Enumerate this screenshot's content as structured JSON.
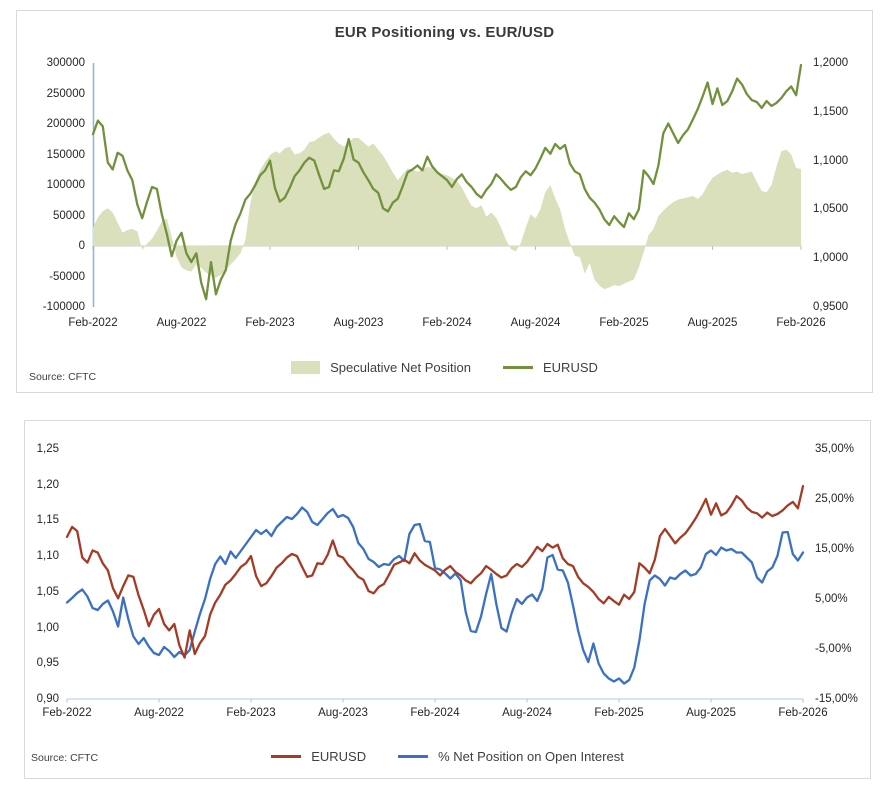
{
  "chart_data": [
    {
      "type": "combo",
      "title": "EUR Positioning vs. EUR/USD",
      "source": "Source: CFTC",
      "x_ticks": [
        "Feb-2022",
        "Aug-2022",
        "Feb-2023",
        "Aug-2023",
        "Feb-2024",
        "Aug-2024",
        "Feb-2025",
        "Aug-2025",
        "Feb-2026"
      ],
      "left_axis": {
        "min": -100000,
        "max": 300000,
        "zero_line": true,
        "axis_line_color": "#8eb4e3",
        "ticks": [
          "300000",
          "250000",
          "200000",
          "150000",
          "100000",
          "50000",
          "0",
          "-50000",
          "-100000"
        ]
      },
      "right_axis": {
        "min": 0.95,
        "max": 1.2,
        "ticks": [
          "1,2000",
          "1,1500",
          "1,1000",
          "1,0500",
          "1,0000",
          "0,9500"
        ]
      },
      "legend": [
        {
          "label": "Speculative Net Position",
          "swatch": "area",
          "color": "#d9e0bb"
        },
        {
          "label": "EURUSD",
          "swatch": "line",
          "color": "#72913c"
        }
      ],
      "series": [
        {
          "name": "Speculative Net Position",
          "type": "area",
          "axis": "left",
          "color": "#d9e0bb",
          "values": [
            30000,
            47000,
            57000,
            62000,
            55000,
            38000,
            22000,
            26000,
            28000,
            24000,
            -6000,
            4000,
            12000,
            25000,
            40000,
            45000,
            15000,
            -18000,
            -35000,
            -40000,
            -42000,
            -30000,
            -36000,
            -44000,
            -48000,
            -52000,
            -47000,
            -40000,
            -30000,
            -22000,
            -12000,
            10000,
            70000,
            105000,
            125000,
            138000,
            149000,
            155000,
            152000,
            160000,
            163000,
            150000,
            152000,
            158000,
            170000,
            172000,
            178000,
            183000,
            186000,
            176000,
            168000,
            163000,
            170000,
            177000,
            177000,
            170000,
            163000,
            168000,
            158000,
            148000,
            135000,
            120000,
            108000,
            118000,
            127000,
            125000,
            122000,
            125000,
            130000,
            128000,
            122000,
            118000,
            116000,
            112000,
            106000,
            96000,
            80000,
            66000,
            62000,
            67000,
            48000,
            55000,
            46000,
            30000,
            10000,
            -5000,
            -9000,
            5000,
            30000,
            52000,
            45000,
            60000,
            88000,
            100000,
            78000,
            60000,
            28000,
            5000,
            -16000,
            -18000,
            -45000,
            -28000,
            -55000,
            -65000,
            -71000,
            -68000,
            -64000,
            -66000,
            -62000,
            -58000,
            -55000,
            -35000,
            -10000,
            18000,
            28000,
            49000,
            58000,
            66000,
            72000,
            76000,
            78000,
            80000,
            82000,
            77000,
            85000,
            100000,
            112000,
            117000,
            122000,
            125000,
            120000,
            122000,
            118000,
            120000,
            122000,
            105000,
            90000,
            88000,
            100000,
            130000,
            155000,
            158000,
            150000,
            128000,
            126000
          ]
        },
        {
          "name": "EURUSD",
          "type": "line",
          "axis": "right",
          "color": "#72913c",
          "values": [
            1.127,
            1.141,
            1.135,
            1.098,
            1.091,
            1.108,
            1.105,
            1.09,
            1.08,
            1.055,
            1.041,
            1.058,
            1.073,
            1.071,
            1.045,
            1.025,
            1.002,
            1.018,
            1.026,
            1.005,
            0.996,
            1.005,
            0.975,
            0.958,
            0.996,
            0.963,
            0.978,
            0.988,
            1.018,
            1.035,
            1.046,
            1.06,
            1.066,
            1.075,
            1.085,
            1.09,
            1.1,
            1.072,
            1.058,
            1.062,
            1.072,
            1.084,
            1.09,
            1.098,
            1.103,
            1.1,
            1.085,
            1.071,
            1.073,
            1.09,
            1.089,
            1.102,
            1.122,
            1.101,
            1.098,
            1.088,
            1.08,
            1.071,
            1.067,
            1.051,
            1.048,
            1.057,
            1.061,
            1.074,
            1.088,
            1.091,
            1.095,
            1.09,
            1.104,
            1.094,
            1.088,
            1.084,
            1.08,
            1.073,
            1.081,
            1.086,
            1.078,
            1.073,
            1.066,
            1.062,
            1.07,
            1.076,
            1.086,
            1.081,
            1.075,
            1.07,
            1.073,
            1.083,
            1.089,
            1.085,
            1.092,
            1.102,
            1.113,
            1.107,
            1.117,
            1.112,
            1.116,
            1.097,
            1.089,
            1.086,
            1.071,
            1.062,
            1.057,
            1.05,
            1.04,
            1.034,
            1.043,
            1.037,
            1.032,
            1.046,
            1.04,
            1.05,
            1.09,
            1.084,
            1.076,
            1.095,
            1.128,
            1.138,
            1.128,
            1.118,
            1.126,
            1.132,
            1.142,
            1.153,
            1.166,
            1.18,
            1.158,
            1.174,
            1.157,
            1.161,
            1.171,
            1.184,
            1.178,
            1.168,
            1.162,
            1.16,
            1.154,
            1.161,
            1.156,
            1.159,
            1.164,
            1.171,
            1.176,
            1.167,
            1.198
          ]
        }
      ]
    },
    {
      "type": "line",
      "source": "Source: CFTC",
      "x_ticks": [
        "Feb-2022",
        "Aug-2022",
        "Feb-2023",
        "Aug-2023",
        "Feb-2024",
        "Aug-2024",
        "Feb-2025",
        "Aug-2025",
        "Feb-2026"
      ],
      "left_axis": {
        "min": 0.9,
        "max": 1.25,
        "ticks": [
          "1,25",
          "1,20",
          "1,15",
          "1,10",
          "1,05",
          "1,00",
          "0,95",
          "0,90"
        ]
      },
      "right_axis": {
        "min": -15,
        "max": 35,
        "ticks": [
          "35,00%",
          "25,00%",
          "15,00%",
          "5,00%",
          "-5,00%",
          "-15,00%"
        ]
      },
      "bottom_axis_line_color": "#bdd7ee",
      "legend": [
        {
          "label": "EURUSD",
          "swatch": "line",
          "color": "#a53b25"
        },
        {
          "label": "% Net Position on Open Interest",
          "swatch": "line",
          "color": "#3b70c4"
        }
      ],
      "series": [
        {
          "name": "% Net Position on Open Interest",
          "type": "line",
          "axis": "right",
          "color": "#3b70c4",
          "values": [
            4.3,
            5.2,
            6.2,
            6.9,
            5.5,
            3.2,
            2.8,
            4.0,
            4.7,
            2.5,
            -0.5,
            5.3,
            1.0,
            -2.5,
            -4.0,
            -2.8,
            -4.5,
            -5.8,
            -6.2,
            -4.6,
            -5.4,
            -6.6,
            -5.6,
            -6.3,
            -5.2,
            -1.5,
            2.0,
            5.0,
            9.0,
            12.0,
            13.5,
            12.0,
            14.5,
            13.2,
            14.6,
            16.0,
            17.4,
            18.8,
            18.0,
            18.8,
            17.6,
            19.4,
            20.4,
            21.4,
            21.0,
            22.0,
            23.3,
            22.4,
            20.4,
            19.8,
            21.0,
            22.2,
            23.0,
            21.4,
            21.8,
            21.2,
            19.4,
            16.2,
            15.0,
            13.0,
            12.4,
            11.4,
            12.0,
            11.8,
            13.0,
            13.6,
            12.6,
            18.0,
            19.8,
            20.0,
            16.6,
            16.4,
            11.2,
            10.9,
            10.1,
            9.1,
            10.1,
            8.8,
            2.4,
            -1.4,
            -1.6,
            1.5,
            6.0,
            10.0,
            4.0,
            -0.8,
            -1.5,
            2.2,
            5.0,
            4.0,
            5.3,
            5.9,
            4.6,
            7.0,
            13.3,
            13.8,
            10.9,
            10.7,
            8.3,
            3.7,
            -1.3,
            -5.2,
            -7.6,
            -3.9,
            -7.9,
            -9.9,
            -10.9,
            -11.5,
            -10.9,
            -11.9,
            -11.2,
            -8.7,
            -3.3,
            4.0,
            8.7,
            9.7,
            9.0,
            7.7,
            9.3,
            9.0,
            10.0,
            10.7,
            9.7,
            10.0,
            11.3,
            14.0,
            14.7,
            13.8,
            15.3,
            14.7,
            15.0,
            14.3,
            14.3,
            13.3,
            12.3,
            9.3,
            8.3,
            10.5,
            11.3,
            13.6,
            18.3,
            18.4,
            14.0,
            12.7,
            14.3
          ]
        },
        {
          "name": "EURUSD",
          "type": "line",
          "axis": "left",
          "color": "#a53b25",
          "values": [
            1.127,
            1.141,
            1.135,
            1.098,
            1.091,
            1.108,
            1.105,
            1.09,
            1.08,
            1.055,
            1.041,
            1.058,
            1.073,
            1.071,
            1.045,
            1.025,
            1.002,
            1.018,
            1.026,
            1.005,
            0.996,
            1.005,
            0.975,
            0.958,
            0.996,
            0.963,
            0.978,
            0.988,
            1.018,
            1.035,
            1.046,
            1.06,
            1.066,
            1.075,
            1.085,
            1.09,
            1.1,
            1.072,
            1.058,
            1.062,
            1.072,
            1.084,
            1.09,
            1.098,
            1.103,
            1.1,
            1.085,
            1.071,
            1.073,
            1.09,
            1.089,
            1.102,
            1.122,
            1.101,
            1.098,
            1.088,
            1.08,
            1.071,
            1.067,
            1.051,
            1.048,
            1.057,
            1.061,
            1.074,
            1.088,
            1.091,
            1.095,
            1.09,
            1.104,
            1.094,
            1.088,
            1.084,
            1.08,
            1.073,
            1.081,
            1.086,
            1.078,
            1.073,
            1.066,
            1.062,
            1.07,
            1.076,
            1.086,
            1.081,
            1.075,
            1.07,
            1.073,
            1.083,
            1.089,
            1.085,
            1.092,
            1.102,
            1.113,
            1.107,
            1.117,
            1.112,
            1.116,
            1.097,
            1.089,
            1.086,
            1.071,
            1.062,
            1.057,
            1.05,
            1.04,
            1.034,
            1.043,
            1.037,
            1.032,
            1.046,
            1.04,
            1.05,
            1.09,
            1.084,
            1.076,
            1.095,
            1.128,
            1.138,
            1.128,
            1.118,
            1.126,
            1.132,
            1.142,
            1.153,
            1.166,
            1.18,
            1.158,
            1.174,
            1.157,
            1.161,
            1.171,
            1.184,
            1.178,
            1.168,
            1.162,
            1.16,
            1.154,
            1.161,
            1.156,
            1.159,
            1.164,
            1.171,
            1.176,
            1.167,
            1.198
          ]
        }
      ]
    }
  ]
}
